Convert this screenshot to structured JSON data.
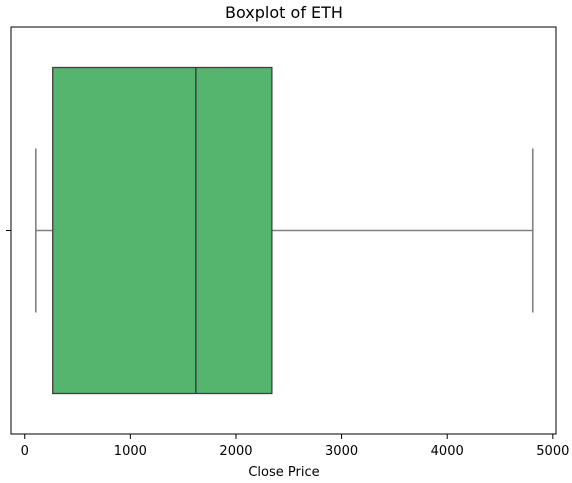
{
  "chart_data": {
    "type": "boxplot",
    "title": "Boxplot of ETH",
    "xlabel": "Close Price",
    "ylabel": "",
    "orientation": "horizontal",
    "xlim": [
      -130,
      5030
    ],
    "x_ticks": [
      0,
      1000,
      2000,
      3000,
      4000,
      5000
    ],
    "x_tick_labels": [
      "0",
      "1000",
      "2000",
      "3000",
      "4000",
      "5000"
    ],
    "grid": false,
    "legend": "none",
    "series": [
      {
        "whisker_low": 105,
        "q1": 265,
        "median": 1620,
        "q3": 2340,
        "whisker_high": 4810,
        "color": "#55b56e"
      }
    ]
  },
  "colors": {
    "box_fill": "#55b56e",
    "box_edge": "#3f3f3f",
    "whisker": "#808080"
  }
}
